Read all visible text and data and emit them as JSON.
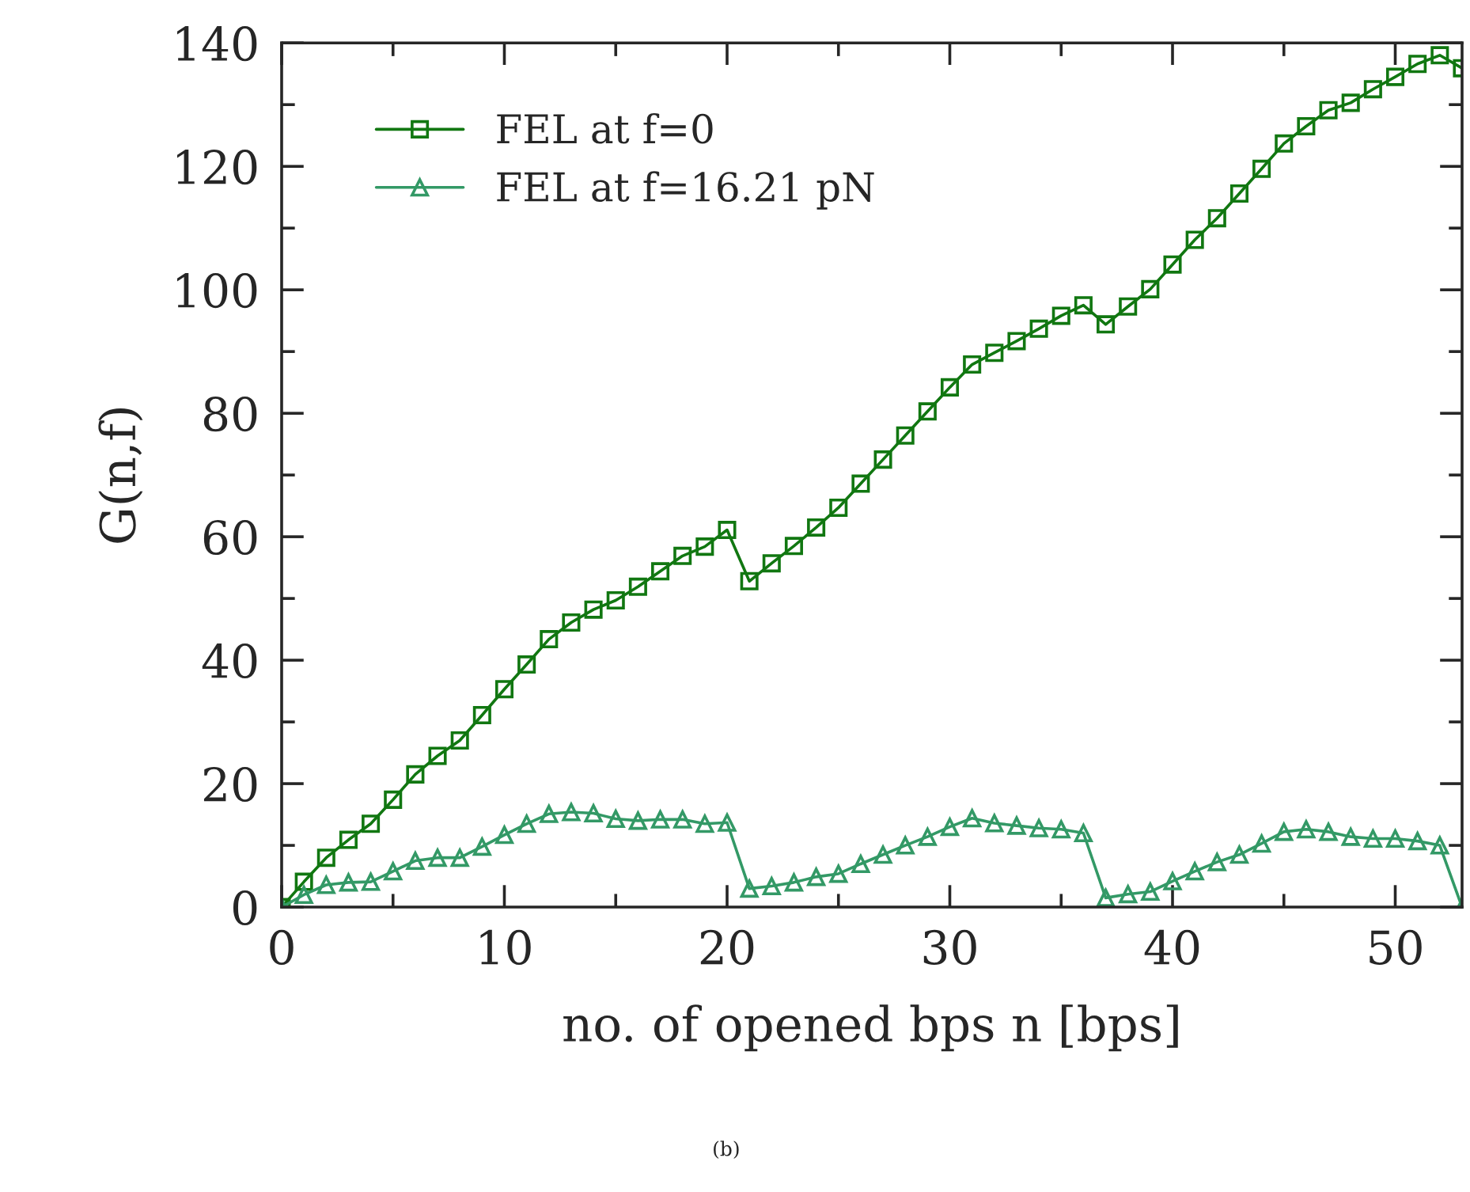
{
  "chart_data": {
    "type": "line",
    "xlabel": "no. of opened bps n [bps]",
    "ylabel": "G(n,f)",
    "x": [
      0,
      1,
      2,
      3,
      4,
      5,
      6,
      7,
      8,
      9,
      10,
      11,
      12,
      13,
      14,
      15,
      16,
      17,
      18,
      19,
      20,
      21,
      22,
      23,
      24,
      25,
      26,
      27,
      28,
      29,
      30,
      31,
      32,
      33,
      34,
      35,
      36,
      37,
      38,
      39,
      40,
      41,
      42,
      43,
      44,
      45,
      46,
      47,
      48,
      49,
      50,
      51,
      52,
      53
    ],
    "series": [
      {
        "name": "FEL at f=0",
        "color": "#117711",
        "marker": "square",
        "values": [
          0,
          4.1,
          8.0,
          10.9,
          13.5,
          17.4,
          21.5,
          24.5,
          27.0,
          31.1,
          35.3,
          39.3,
          43.4,
          46.1,
          48.2,
          49.7,
          51.9,
          54.4,
          56.9,
          58.4,
          61.1,
          52.8,
          55.7,
          58.5,
          61.5,
          64.7,
          68.6,
          72.5,
          76.4,
          80.3,
          84.2,
          87.9,
          89.8,
          91.7,
          93.7,
          95.8,
          97.5,
          94.4,
          97.3,
          100.1,
          104.1,
          108.1,
          111.6,
          115.6,
          119.6,
          123.7,
          126.5,
          129.1,
          130.3,
          132.5,
          134.5,
          136.6,
          138.0,
          135.9
        ]
      },
      {
        "name": "FEL at f=16.21 pN",
        "color": "#339966",
        "marker": "triangle",
        "values": [
          0,
          2.0,
          3.6,
          4.0,
          4.1,
          5.8,
          7.5,
          8.0,
          8.0,
          9.8,
          11.7,
          13.5,
          15.1,
          15.4,
          15.2,
          14.3,
          14.0,
          14.2,
          14.2,
          13.5,
          13.7,
          3.0,
          3.4,
          4.0,
          4.9,
          5.4,
          7.0,
          8.5,
          10.0,
          11.4,
          13.0,
          14.4,
          13.6,
          13.2,
          12.8,
          12.6,
          12.0,
          1.5,
          2.1,
          2.5,
          4.2,
          5.8,
          7.3,
          8.5,
          10.3,
          12.2,
          12.6,
          12.2,
          11.4,
          11.1,
          11.1,
          10.7,
          10.0,
          0
        ]
      }
    ],
    "xlim": [
      0,
      53
    ],
    "ylim": [
      0,
      140
    ],
    "xticks": [
      0,
      {
        "value": 5,
        "label": null
      },
      10,
      {
        "value": 15,
        "label": null
      },
      20,
      {
        "value": 25,
        "label": null
      },
      30,
      {
        "value": 35,
        "label": null
      },
      40,
      {
        "value": 45,
        "label": null
      },
      50
    ],
    "yticks": [
      0,
      {
        "value": 10,
        "label": null
      },
      20,
      {
        "value": 30,
        "label": null
      },
      40,
      {
        "value": 50,
        "label": null
      },
      60,
      {
        "value": 70,
        "label": null
      },
      80,
      {
        "value": 90,
        "label": null
      },
      100,
      {
        "value": 110,
        "label": null
      },
      120,
      {
        "value": 130,
        "label": null
      },
      140
    ],
    "grid": false,
    "legend": "top left",
    "line_style": "solid",
    "annotations": [
      "(b)"
    ]
  }
}
